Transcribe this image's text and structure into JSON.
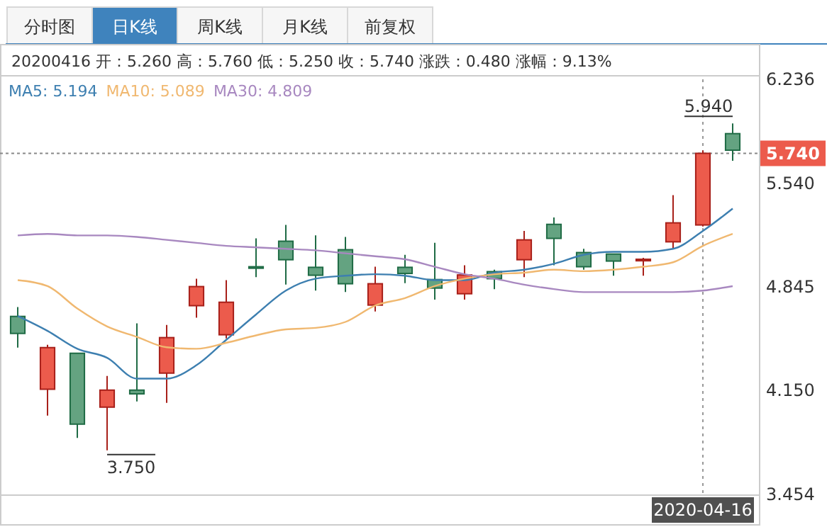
{
  "chart_data": {
    "type": "candlestick",
    "title": "日K线",
    "subtitle": "20200416 开：5.260 高：5.760 低：5.250 收：5.740 涨跌：0.480 涨幅：9.13%",
    "annotations": [
      "分时图",
      "周K线",
      "月K线",
      "前复权",
      "3.750",
      "5.940"
    ],
    "categories": [
      null,
      null,
      null,
      null,
      null,
      null,
      null,
      null,
      null,
      null,
      null,
      null,
      null,
      null,
      null,
      null,
      null,
      null,
      null,
      null,
      null,
      null,
      null,
      "2020-04-16",
      null
    ],
    "ohlc": [
      [
        4.647,
        4.71,
        4.438,
        4.533
      ],
      [
        4.159,
        4.457,
        3.982,
        4.438
      ],
      [
        4.4,
        4.4,
        3.833,
        3.925
      ],
      [
        4.039,
        4.248,
        3.75,
        4.153
      ],
      [
        4.153,
        4.6,
        4.077,
        4.128
      ],
      [
        4.267,
        4.59,
        4.068,
        4.505
      ],
      [
        4.719,
        4.9,
        4.638,
        4.847
      ],
      [
        4.524,
        4.89,
        4.5,
        4.742
      ],
      [
        4.98,
        5.17,
        4.91,
        4.97
      ],
      [
        5.151,
        5.26,
        4.86,
        5.027
      ],
      [
        4.976,
        5.19,
        4.82,
        4.923
      ],
      [
        5.094,
        5.18,
        4.81,
        4.866
      ],
      [
        4.723,
        4.98,
        4.68,
        4.866
      ],
      [
        4.976,
        5.06,
        4.87,
        4.935
      ],
      [
        4.894,
        5.14,
        4.76,
        4.837
      ],
      [
        4.799,
        4.99,
        4.76,
        4.925
      ],
      [
        4.947,
        4.96,
        4.83,
        4.9
      ],
      [
        5.027,
        5.22,
        4.91,
        5.16
      ],
      [
        5.264,
        5.31,
        4.99,
        5.17
      ],
      [
        5.075,
        5.1,
        4.96,
        4.98
      ],
      [
        5.065,
        5.065,
        4.92,
        5.018
      ],
      [
        5.02,
        5.04,
        4.92,
        5.03
      ],
      [
        5.147,
        5.46,
        5.1,
        5.274
      ],
      [
        5.26,
        5.76,
        5.25,
        5.74
      ],
      [
        5.872,
        5.94,
        5.69,
        5.761
      ]
    ],
    "series": [
      {
        "name": "MA5: 5.194",
        "type": "line",
        "color": "#3d7fb0",
        "values": [
          4.65,
          4.55,
          4.43,
          4.37,
          4.23,
          4.23,
          4.32,
          4.49,
          4.66,
          4.82,
          4.9,
          4.92,
          4.93,
          4.92,
          4.89,
          4.89,
          4.94,
          4.96,
          5.0,
          5.06,
          5.08,
          5.08,
          5.1,
          5.22,
          5.37
        ]
      },
      {
        "name": "MA10: 5.089",
        "type": "line",
        "color": "#f0b870",
        "values": [
          4.89,
          4.85,
          4.7,
          4.58,
          4.51,
          4.44,
          4.43,
          4.47,
          4.52,
          4.56,
          4.57,
          4.61,
          4.72,
          4.77,
          4.85,
          4.9,
          4.93,
          4.94,
          4.96,
          4.95,
          4.96,
          4.98,
          5.01,
          5.12,
          5.2
        ]
      },
      {
        "name": "MA30: 4.809",
        "type": "line",
        "color": "#a888c0",
        "values": [
          5.19,
          5.2,
          5.19,
          5.19,
          5.18,
          5.16,
          5.14,
          5.12,
          5.11,
          5.1,
          5.09,
          5.07,
          5.05,
          5.03,
          4.98,
          4.93,
          4.9,
          4.86,
          4.83,
          4.81,
          4.81,
          4.81,
          4.81,
          4.82,
          4.85
        ]
      }
    ],
    "ylim": [
      3.454,
      6.236
    ],
    "yticks": [
      3.454,
      {
        "value": 4.15,
        "label": "4.150"
      },
      4.845,
      {
        "value": 5.54,
        "label": "5.540"
      },
      6.236
    ],
    "ref_lines": [
      {
        "axis": "y",
        "value": 5.74,
        "label": "5.740",
        "line_style": "dashed"
      }
    ],
    "legend": "top left"
  }
}
